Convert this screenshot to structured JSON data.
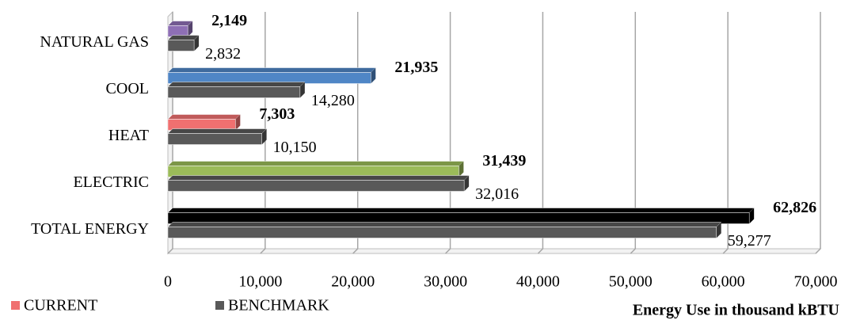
{
  "chart_data": {
    "type": "bar",
    "orientation": "horizontal",
    "categories": [
      "NATURAL GAS",
      "COOL",
      "HEAT",
      "ELECTRIC",
      "TOTAL ENERGY"
    ],
    "series": [
      {
        "name": "CURRENT",
        "color": "#f07070",
        "colors": [
          "#8e6fb5",
          "#4f86c6",
          "#f07070",
          "#9bbb59",
          "#000000"
        ],
        "values": [
          2149,
          21935,
          7303,
          31439,
          62826
        ],
        "value_labels": [
          "2,149",
          "21,935",
          "7,303",
          "31,439",
          "62,826"
        ]
      },
      {
        "name": "BENCHMARK",
        "color": "#595959",
        "values": [
          2832,
          14280,
          10150,
          32016,
          59277
        ],
        "value_labels": [
          "2,832",
          "14,280",
          "10,150",
          "32,016",
          "59,277"
        ]
      }
    ],
    "xlim": [
      0,
      70000
    ],
    "xticks": [
      0,
      {
        "value": 10000,
        "label": "10,000"
      },
      {
        "value": 20000,
        "label": "20,000"
      },
      {
        "value": 30000,
        "label": "30,000"
      },
      {
        "value": 40000,
        "label": "40,000"
      },
      {
        "value": 50000,
        "label": "50,000"
      },
      {
        "value": 60000,
        "label": "60,000"
      },
      {
        "value": 70000,
        "label": "70,000"
      }
    ],
    "x_label": "Energy Use in thousand kBTU",
    "grid": true,
    "legend": "bottom-left"
  }
}
